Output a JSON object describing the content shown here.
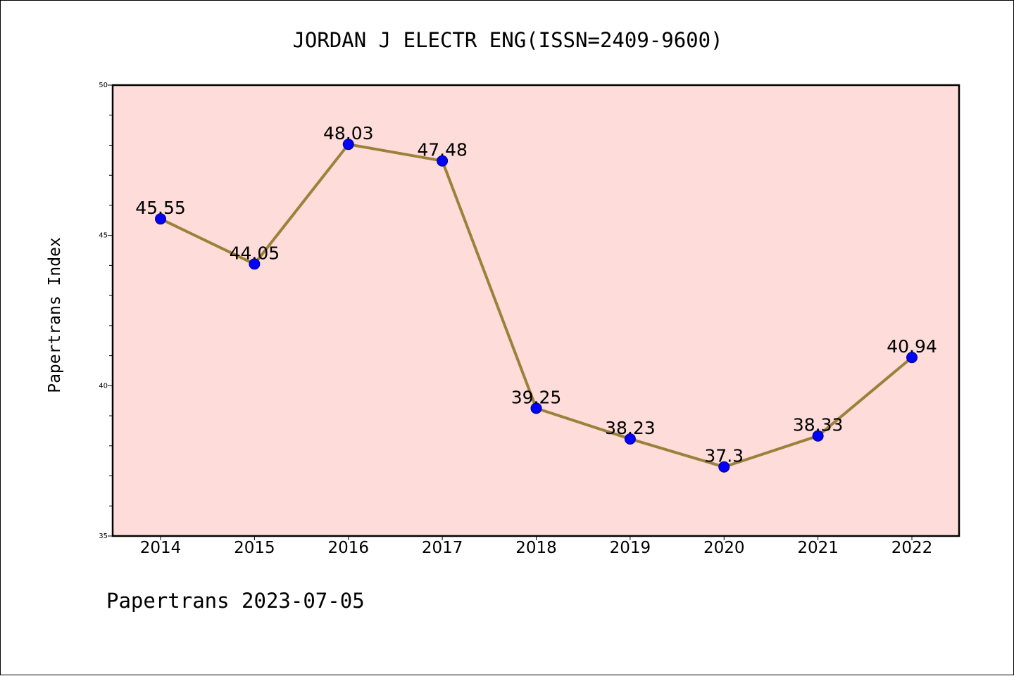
{
  "title": "JORDAN J ELECTR ENG(ISSN=2409-9600)",
  "footer": "Papertrans 2023-07-05",
  "colors": {
    "plot_background": "#fddcd9",
    "line": "#9b8139",
    "marker": "#0000ff",
    "marker_edge": "#000080"
  },
  "chart_data": {
    "type": "line",
    "title": "JORDAN J ELECTR ENG(ISSN=2409-9600)",
    "xlabel": "",
    "ylabel": "Papertrans Index",
    "categories": [
      "2014",
      "2015",
      "2016",
      "2017",
      "2018",
      "2019",
      "2020",
      "2021",
      "2022"
    ],
    "series": [
      {
        "values": [
          45.55,
          44.05,
          48.03,
          47.48,
          39.25,
          38.23,
          37.3,
          38.33,
          40.94
        ],
        "labels": [
          "45.55",
          "44.05",
          "48.03",
          "47.48",
          "39.25",
          "38.23",
          "37.3",
          "38.33",
          "40.94"
        ]
      }
    ],
    "ylim": [
      35,
      50
    ],
    "y_major_ticks": [
      35,
      40,
      45,
      50
    ],
    "y_minor_step": 1,
    "grid": false,
    "legend": "none"
  }
}
